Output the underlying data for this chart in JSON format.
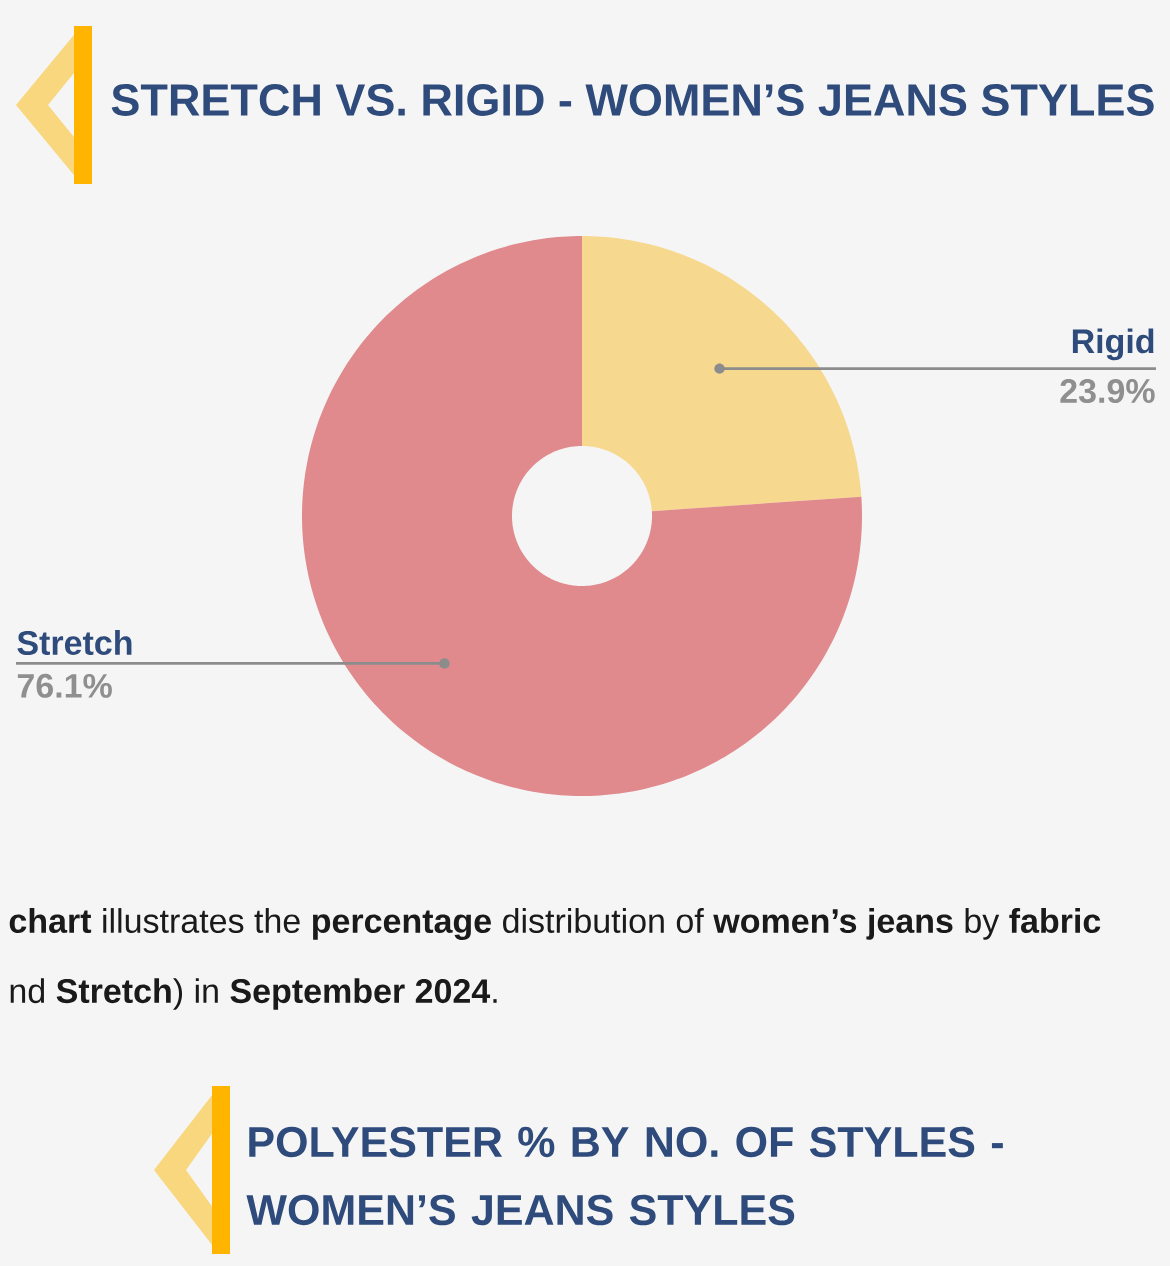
{
  "chart_data": {
    "type": "donut",
    "title": "STRETCH VS. RIGID - WOMEN’S JEANS STYLES",
    "categories": [
      "Rigid",
      "Stretch"
    ],
    "values": [
      23.9,
      76.1
    ],
    "colors": [
      "#f6d98e",
      "#e08a8e"
    ],
    "value_labels": [
      "23.9%",
      "76.1%"
    ],
    "annotations": [
      "**chart** illustrates the **percentage** distribution of **women’s jeans** by **fabric**",
      "nd **Stretch**) in **September 2024**.",
      "POLYESTER % BY NO. OF STYLES - WOMEN’S JEANS STYLES"
    ]
  }
}
